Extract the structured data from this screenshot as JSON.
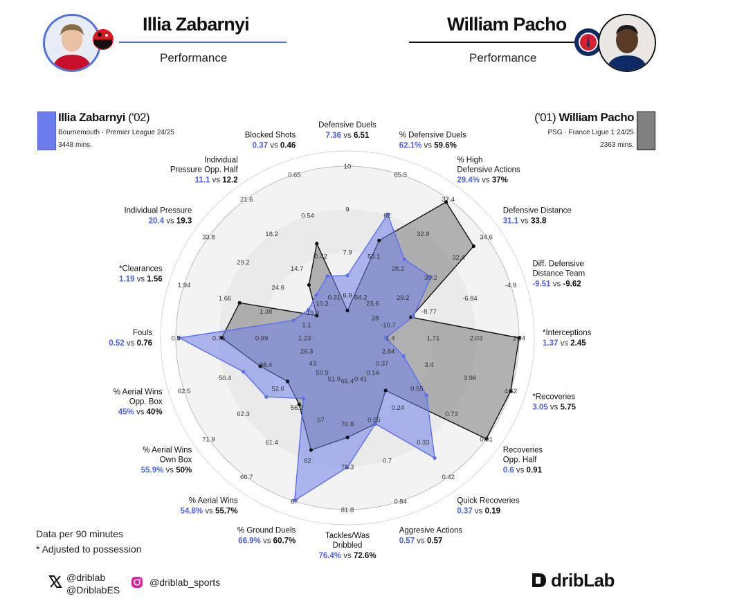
{
  "header": {
    "left": {
      "name": "Illia Zabarnyi",
      "subtitle": "Performance"
    },
    "right": {
      "name": "William Pacho",
      "subtitle": "Performance"
    }
  },
  "legend": {
    "left": {
      "name": "Illia Zabarnyi",
      "year": "('02)",
      "team_league": "Bournemouth · Premier League 24/25",
      "minutes": "3448 mins.",
      "color": "#6b7de8"
    },
    "right": {
      "name": "William Pacho",
      "year": "('01)",
      "team_league": "PSG · France Ligue 1 24/25",
      "minutes": "2363 mins.",
      "color": "#808080"
    }
  },
  "notes": {
    "line1": "Data per 90 minutes",
    "line2": "* Adjusted to possession"
  },
  "social": {
    "x_line1": "@driblab",
    "x_line2": "@DriblabES",
    "instagram": "@driblab_sports"
  },
  "brand": {
    "logo_text": "dribLab"
  },
  "colors": {
    "player1": "#5b6ff0",
    "player2": "#111111",
    "player1_fill": "#6f7fe6",
    "player2_fill": "#7a7a7a"
  },
  "chart_data": {
    "type": "radar",
    "series": [
      {
        "name": "Illia Zabarnyi",
        "values": [
          7.36,
          62.1,
          29.4,
          31.1,
          -9.51,
          1.37,
          3.05,
          0.6,
          0.37,
          0.57,
          76.4,
          66.9,
          54.8,
          55.9,
          45,
          0.52,
          1.19,
          20.4,
          11.1,
          0.37
        ]
      },
      {
        "name": "William Pacho",
        "values": [
          6.51,
          59.6,
          37,
          33.8,
          -9.62,
          2.45,
          5.75,
          0.91,
          0.19,
          0.57,
          72.6,
          60.7,
          55.7,
          50,
          40,
          0.76,
          1.56,
          19.3,
          12.2,
          0.46
        ]
      }
    ],
    "axes": [
      {
        "label": "Defensive Duels",
        "v1": "7.36",
        "v2": "6.51",
        "ticks": [
          "6.9",
          "7.9",
          "9",
          "10"
        ],
        "min": 5.85,
        "max": 10
      },
      {
        "label": "% Defensive Duels",
        "v1": "62.1%",
        "v2": "59.6%",
        "ticks": [
          "54.2",
          "58.1",
          "62",
          "65.9"
        ],
        "min": 50.3,
        "max": 65.9
      },
      {
        "label": "% High Defensive Actions",
        "v1": "29.4%",
        "v2": "37%",
        "ticks": [
          "23.6",
          "28.2",
          "32.8",
          "37.4"
        ],
        "min": 19,
        "max": 37.4
      },
      {
        "label": "Defensive Distance",
        "v1": "31.1",
        "v2": "33.8",
        "ticks": [
          "28",
          "29.2",
          "30.2",
          "32.4",
          "34.6"
        ],
        "min": 25.8,
        "max": 34.6
      },
      {
        "label": "Diff. Defensive Distance Team",
        "v1": "-9.51",
        "v2": "-9.62",
        "ticks": [
          "-10.7",
          "-8.77",
          "-6.84",
          "-4.9"
        ],
        "min": -12.63,
        "max": -4.9
      },
      {
        "label": "*Interceptions",
        "v1": "1.37",
        "v2": "2.45",
        "ticks": [
          "1.4",
          "1.71",
          "2.03",
          "2.34"
        ],
        "min": 1.09,
        "max": 2.34
      },
      {
        "label": "*Recoveries",
        "v1": "3.05",
        "v2": "5.75",
        "ticks": [
          "2.84",
          "3.4",
          "3.96",
          "4.52"
        ],
        "min": 2.28,
        "max": 4.52
      },
      {
        "label": "Recoveries Opp. Half",
        "v1": "0.6",
        "v2": "0.91",
        "ticks": [
          "0.37",
          "0.55",
          "0.73",
          "0.91"
        ],
        "min": 0.19,
        "max": 0.91
      },
      {
        "label": "Quick Recoveries",
        "v1": "0.37",
        "v2": "0.19",
        "ticks": [
          "0.14",
          "0.24",
          "0.33",
          "0.42"
        ],
        "min": 0.05,
        "max": 0.42
      },
      {
        "label": "Aggresive Actions",
        "v1": "0.57",
        "v2": "0.57",
        "ticks": [
          "0.41",
          "0.55",
          "0.7",
          "0.84"
        ],
        "min": 0.27,
        "max": 0.84
      },
      {
        "label": "Tackles/Was Dribbled",
        "v1": "76.4%",
        "v2": "72.6%",
        "ticks": [
          "65.4",
          "70.8",
          "76.3",
          "81.8"
        ],
        "min": 59.9,
        "max": 81.8
      },
      {
        "label": "% Ground Duels",
        "v1": "66.9%",
        "v2": "60.7%",
        "ticks": [
          "51.9",
          "57",
          "62",
          "67"
        ],
        "min": 46.9,
        "max": 67
      },
      {
        "label": "% Aerial Wins",
        "v1": "54.8%",
        "v2": "55.7%",
        "ticks": [
          "50.9",
          "56.2",
          "61.4",
          "66.7"
        ],
        "min": 45.6,
        "max": 66.7
      },
      {
        "label": "% Aerial Wins Own Box",
        "v1": "55.9%",
        "v2": "50%",
        "ticks": [
          "43",
          "52.6",
          "62.3",
          "71.9"
        ],
        "min": 33.4,
        "max": 71.9
      },
      {
        "label": "% Aerial Wins Opp. Box",
        "v1": "45%",
        "v2": "40%",
        "ticks": [
          "26.3",
          "38.4",
          "50.4",
          "62.5"
        ],
        "min": 14.2,
        "max": 62.5
      },
      {
        "label": "Fouls",
        "v1": "0.52",
        "v2": "0.76",
        "ticks": [
          "1.23",
          "0.99",
          "0.75",
          "0.5"
        ],
        "min": 1.47,
        "max": 0.5
      },
      {
        "label": "*Clearances",
        "v1": "1.19",
        "v2": "1.56",
        "ticks": [
          "1.1",
          "1.38",
          "1.66",
          "1.94"
        ],
        "min": 0.82,
        "max": 1.94
      },
      {
        "label": "Individual Pressure",
        "v1": "20.4",
        "v2": "19.3",
        "ticks": [
          "19.9",
          "24.6",
          "29.2",
          "33.8"
        ],
        "min": 15.2,
        "max": 33.8
      },
      {
        "label": "Individual Pressure Opp. Half",
        "v1": "11.1",
        "v2": "12.2",
        "ticks": [
          "10.2",
          "14.7",
          "18.2",
          "21.6"
        ],
        "min": 6.4,
        "max": 21.6
      },
      {
        "label": "Blocked Shots",
        "v1": "0.37",
        "v2": "0.46",
        "ticks": [
          "0.31",
          "0.42",
          "0.54",
          "0.65"
        ],
        "min": 0.2,
        "max": 0.65
      }
    ]
  }
}
